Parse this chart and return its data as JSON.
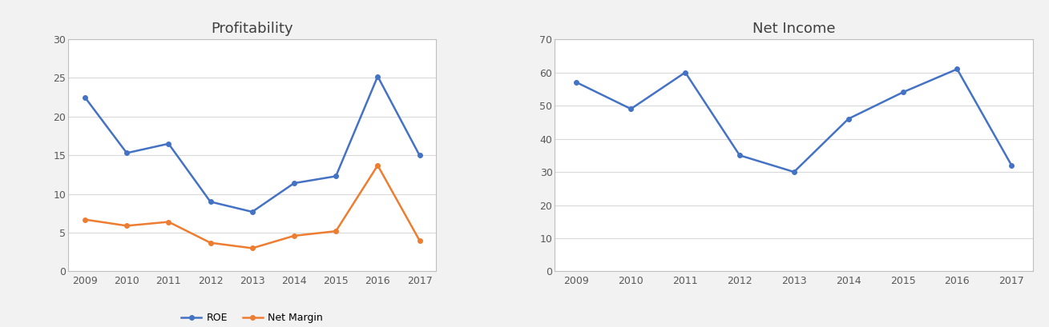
{
  "years": [
    2009,
    2010,
    2011,
    2012,
    2013,
    2014,
    2015,
    2016,
    2017
  ],
  "roe": [
    22.5,
    15.3,
    16.5,
    9.0,
    7.7,
    11.4,
    12.3,
    25.2,
    15.0
  ],
  "net_margin": [
    6.7,
    5.9,
    6.4,
    3.7,
    3.0,
    4.6,
    5.2,
    13.7,
    4.0
  ],
  "net_income": [
    57,
    49,
    60,
    35,
    30,
    46,
    54,
    61,
    32
  ],
  "roe_color": "#4472C4",
  "net_margin_color": "#ED7D31",
  "net_income_color": "#4472C4",
  "title_profitability": "Profitability",
  "title_net_income": "Net Income",
  "roe_label": "ROE",
  "net_margin_label": "Net Margin",
  "profitability_ylim": [
    0,
    30
  ],
  "profitability_yticks": [
    0,
    5,
    10,
    15,
    20,
    25,
    30
  ],
  "net_income_ylim": [
    0,
    70
  ],
  "net_income_yticks": [
    0,
    10,
    20,
    30,
    40,
    50,
    60,
    70
  ],
  "background_color": "#F2F2F2",
  "plot_bg_color": "#FFFFFF",
  "grid_color": "#D9D9D9",
  "border_color": "#BFBFBF",
  "title_fontsize": 13,
  "legend_fontsize": 9,
  "tick_fontsize": 9,
  "title_color": "#404040",
  "tick_color": "#595959"
}
